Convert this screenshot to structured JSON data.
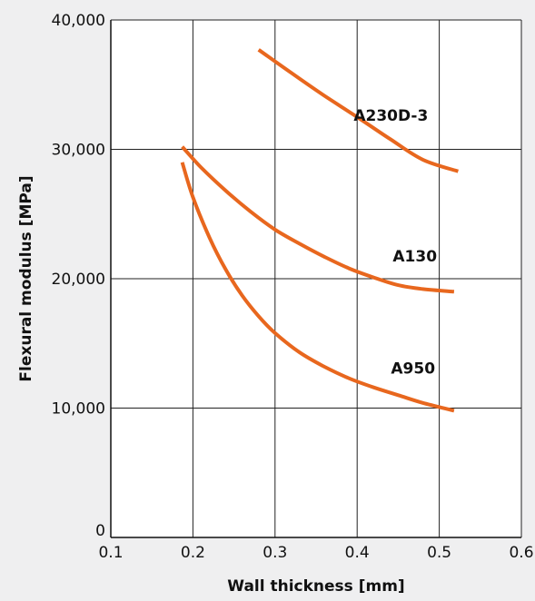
{
  "chart_data": {
    "type": "line",
    "title": "",
    "xlabel": "Wall thickness [mm]",
    "ylabel": "Flexural modulus [MPa]",
    "xlim": [
      0.1,
      0.6
    ],
    "ylim": [
      0,
      40000
    ],
    "x_ticks": [
      0.1,
      0.2,
      0.3,
      0.4,
      0.5,
      0.6
    ],
    "x_tick_labels": [
      "0.1",
      "0.2",
      "0.3",
      "0.4",
      "0.5",
      "0.6"
    ],
    "y_ticks": [
      0,
      10000,
      20000,
      30000,
      40000
    ],
    "y_tick_labels": [
      "0",
      "10,000",
      "20,000",
      "30,000",
      "40,000"
    ],
    "grid": true,
    "line_color": "#e8671e",
    "grid_color": "#222222",
    "background_color": "#efeff0",
    "plot_background_color": "#ffffff",
    "series": [
      {
        "name": "A230D-3",
        "x": [
          0.28,
          0.32,
          0.36,
          0.4,
          0.44,
          0.48,
          0.523
        ],
        "y": [
          37700,
          35900,
          34150,
          32500,
          30800,
          29200,
          28300
        ]
      },
      {
        "name": "A130",
        "x": [
          0.187,
          0.21,
          0.24,
          0.27,
          0.3,
          0.33,
          0.36,
          0.39,
          0.42,
          0.45,
          0.48,
          0.518
        ],
        "y": [
          30200,
          28600,
          26800,
          25200,
          23800,
          22700,
          21700,
          20800,
          20100,
          19500,
          19200,
          19000
        ]
      },
      {
        "name": "A950",
        "x": [
          0.187,
          0.2,
          0.22,
          0.24,
          0.26,
          0.28,
          0.3,
          0.33,
          0.36,
          0.39,
          0.42,
          0.45,
          0.48,
          0.518
        ],
        "y": [
          29000,
          26300,
          23200,
          20700,
          18700,
          17100,
          15800,
          14300,
          13200,
          12300,
          11600,
          11000,
          10400,
          9800
        ]
      }
    ]
  }
}
